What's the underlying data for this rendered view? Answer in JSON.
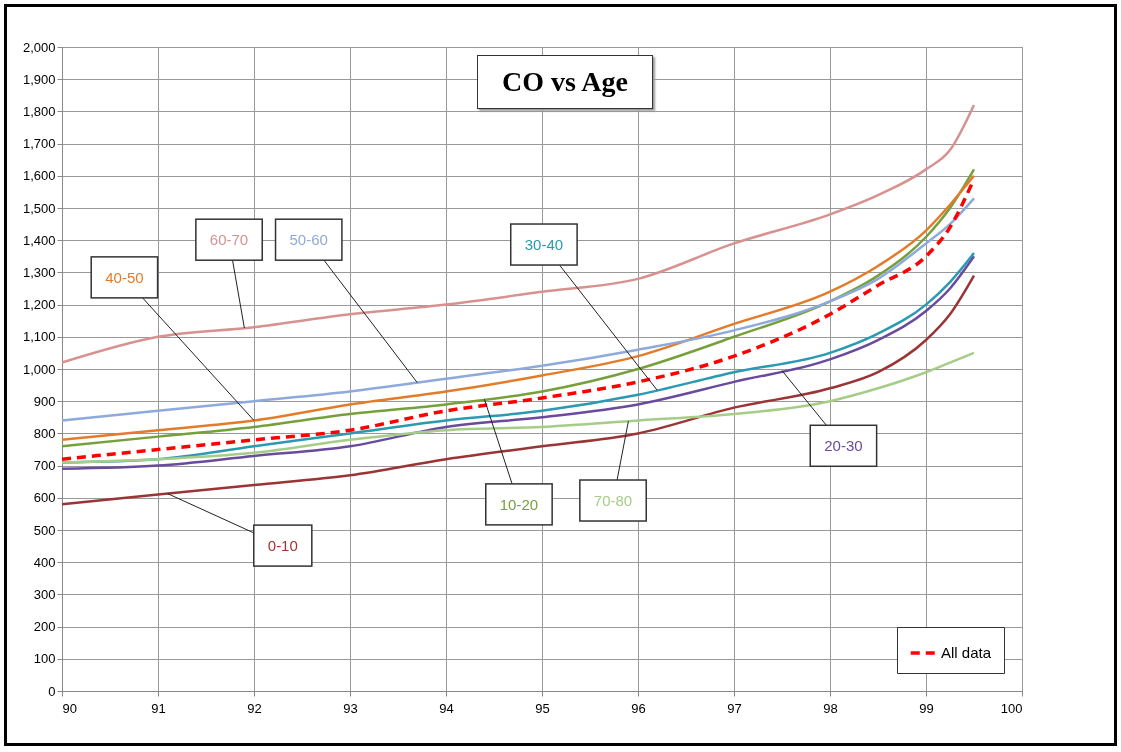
{
  "chart_data": {
    "type": "line",
    "title": "CO vs Age",
    "x": [
      90,
      91,
      92,
      93,
      94,
      95,
      96,
      97,
      98,
      98.5,
      99,
      99.25,
      99.5
    ],
    "series": [
      {
        "name": "0-10",
        "color": "#9b3535",
        "values": [
          580,
          610,
          640,
          670,
          720,
          760,
          800,
          880,
          940,
          990,
          1090,
          1170,
          1290
        ]
      },
      {
        "name": "10-20",
        "color": "#76a03c",
        "values": [
          760,
          790,
          820,
          860,
          890,
          930,
          1000,
          1100,
          1210,
          1290,
          1410,
          1500,
          1620
        ]
      },
      {
        "name": "20-30",
        "color": "#6a4a9c",
        "values": [
          690,
          700,
          730,
          760,
          820,
          850,
          890,
          960,
          1030,
          1090,
          1180,
          1250,
          1350
        ]
      },
      {
        "name": "30-40",
        "color": "#2a9ab2",
        "values": [
          710,
          720,
          760,
          800,
          840,
          870,
          920,
          990,
          1050,
          1110,
          1200,
          1270,
          1360
        ]
      },
      {
        "name": "40-50",
        "color": "#e37c2a",
        "values": [
          780,
          810,
          840,
          890,
          930,
          980,
          1040,
          1140,
          1240,
          1320,
          1430,
          1510,
          1600
        ]
      },
      {
        "name": "50-60",
        "color": "#8eaadc",
        "values": [
          840,
          870,
          900,
          930,
          970,
          1010,
          1060,
          1120,
          1210,
          1280,
          1390,
          1450,
          1530
        ]
      },
      {
        "name": "60-70",
        "color": "#d79290",
        "values": [
          1020,
          1100,
          1130,
          1170,
          1200,
          1240,
          1280,
          1390,
          1480,
          1540,
          1620,
          1680,
          1820
        ]
      },
      {
        "name": "70-80",
        "color": "#a6cd87",
        "values": [
          710,
          720,
          740,
          780,
          810,
          820,
          840,
          860,
          900,
          940,
          990,
          1020,
          1050
        ]
      },
      {
        "name": "All data",
        "color": "#ff0000",
        "line_style": "dashed",
        "values": [
          720,
          750,
          780,
          810,
          870,
          910,
          960,
          1040,
          1170,
          1260,
          1350,
          1440,
          1590
        ]
      }
    ],
    "xlim": [
      90,
      100
    ],
    "xticks": [
      90,
      91,
      92,
      93,
      94,
      95,
      96,
      97,
      98,
      99,
      100
    ],
    "ylim": [
      0,
      2000
    ],
    "yticks": [
      0,
      100,
      200,
      300,
      400,
      500,
      600,
      700,
      800,
      900,
      {
        "value": 1000,
        "label": "1,000"
      },
      {
        "value": 1100,
        "label": "1,100"
      },
      {
        "value": 1200,
        "label": "1,200"
      },
      {
        "value": 1300,
        "label": "1,300"
      },
      {
        "value": 1400,
        "label": "1,400"
      },
      {
        "value": 1500,
        "label": "1,500"
      },
      {
        "value": 1600,
        "label": "1,600"
      },
      {
        "value": 1700,
        "label": "1,700"
      },
      {
        "value": 1800,
        "label": "1,800"
      },
      {
        "value": 1900,
        "label": "1,900"
      },
      {
        "value": 2000,
        "label": "2,000"
      }
    ],
    "grid": true,
    "legend": "bottom right",
    "line_style": "solid",
    "marker": "none"
  }
}
